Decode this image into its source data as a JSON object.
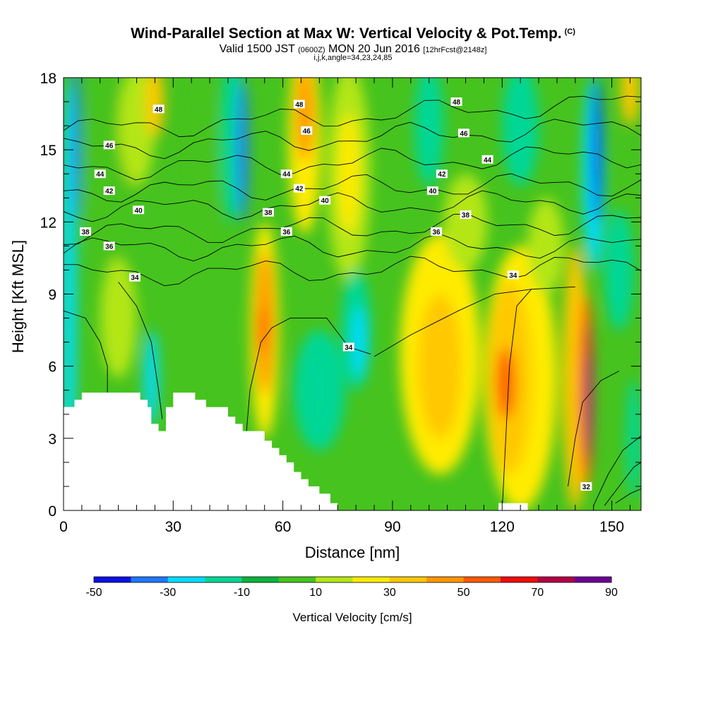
{
  "header": {
    "title": "Wind-Parallel Section at Max W: Vertical Velocity & Pot.Temp.",
    "copyright": "(C)",
    "subtitle_main": "Valid 1500 JST",
    "subtitle_z": "(0600Z)",
    "subtitle_date": "MON 20 Jun 2016",
    "subtitle_fcst": "[12hrFcst@2148z]",
    "subtitle2": "i,j,k,angle=34,23,24,85"
  },
  "chart_data": {
    "type": "heatmap",
    "xlabel": "Distance [nm]",
    "ylabel": "Height [Kft MSL]",
    "xlim": [
      0,
      158
    ],
    "ylim": [
      0,
      18
    ],
    "xticks": [
      "0",
      "30",
      "60",
      "90",
      "120",
      "150"
    ],
    "yticks": [
      "0",
      "3",
      "6",
      "9",
      "12",
      "15",
      "18"
    ],
    "colorbar": {
      "label": "Vertical Velocity [cm/s]",
      "levels": [
        -50,
        -40,
        -30,
        -20,
        -10,
        0,
        10,
        20,
        30,
        40,
        50,
        60,
        70,
        80,
        90
      ],
      "tick_labels": [
        "-50",
        "-30",
        "-10",
        "10",
        "30",
        "50",
        "70",
        "90"
      ],
      "colors": [
        "#0a10e6",
        "#1e78ff",
        "#00dcff",
        "#00d796",
        "#0ab43c",
        "#46c31e",
        "#b4e614",
        "#ffeb00",
        "#ffc800",
        "#ff9600",
        "#ff5a00",
        "#f00a0a",
        "#b40046",
        "#6e0096"
      ]
    },
    "background_w": 5,
    "velocity_cells": [
      {
        "x": 1.5,
        "y": 9,
        "w": 4,
        "h": 18,
        "v": -25
      },
      {
        "x": 3.5,
        "y": 15.5,
        "w": 2,
        "h": 7,
        "v": -40
      },
      {
        "x": 12,
        "y": 14,
        "w": 12,
        "h": 8,
        "v": 8
      },
      {
        "x": 20,
        "y": 16,
        "w": 10,
        "h": 5,
        "v": 18
      },
      {
        "x": 25,
        "y": 17,
        "w": 5,
        "h": 3,
        "v": 30
      },
      {
        "x": 15,
        "y": 8,
        "w": 10,
        "h": 5,
        "v": 14
      },
      {
        "x": 24,
        "y": 5.5,
        "w": 4,
        "h": 4,
        "v": -22
      },
      {
        "x": 38,
        "y": 14,
        "w": 8,
        "h": 8,
        "v": 8
      },
      {
        "x": 46,
        "y": 15.5,
        "w": 6,
        "h": 7,
        "v": -18
      },
      {
        "x": 49,
        "y": 15,
        "w": 3,
        "h": 6,
        "v": -32
      },
      {
        "x": 55,
        "y": 7.5,
        "w": 8,
        "h": 9,
        "v": 25
      },
      {
        "x": 55,
        "y": 7.8,
        "w": 5,
        "h": 6,
        "v": 45
      },
      {
        "x": 54.5,
        "y": 7.5,
        "w": 2.5,
        "h": 2,
        "v": 58
      },
      {
        "x": 66,
        "y": 15.5,
        "w": 9,
        "h": 8,
        "v": 25
      },
      {
        "x": 66,
        "y": 16.5,
        "w": 5,
        "h": 4,
        "v": 45
      },
      {
        "x": 78,
        "y": 14,
        "w": 12,
        "h": 9,
        "v": 15
      },
      {
        "x": 78,
        "y": 14,
        "w": 6,
        "h": 5,
        "v": 25
      },
      {
        "x": 80,
        "y": 7.5,
        "w": 8,
        "h": 5,
        "v": -12
      },
      {
        "x": 81,
        "y": 7,
        "w": 4,
        "h": 3,
        "v": -25
      },
      {
        "x": 70,
        "y": 5,
        "w": 14,
        "h": 5,
        "v": -12
      },
      {
        "x": 103,
        "y": 6.5,
        "w": 22,
        "h": 10,
        "v": 20
      },
      {
        "x": 103,
        "y": 6,
        "w": 12,
        "h": 6,
        "v": 32
      },
      {
        "x": 125,
        "y": 5.5,
        "w": 20,
        "h": 11,
        "v": 22
      },
      {
        "x": 122,
        "y": 5.5,
        "w": 12,
        "h": 8,
        "v": 38
      },
      {
        "x": 121,
        "y": 5.3,
        "w": 5,
        "h": 3,
        "v": 52
      },
      {
        "x": 140,
        "y": 5.5,
        "w": 7,
        "h": 11,
        "v": 30
      },
      {
        "x": 143,
        "y": 5,
        "w": 4,
        "h": 8,
        "v": 55
      },
      {
        "x": 143.5,
        "y": 4.8,
        "w": 2,
        "h": 6,
        "v": 75
      },
      {
        "x": 143.5,
        "y": 4.5,
        "w": 1.2,
        "h": 4,
        "v": 88
      },
      {
        "x": 145,
        "y": 14,
        "w": 6,
        "h": 8,
        "v": -28
      },
      {
        "x": 146,
        "y": 15,
        "w": 2.5,
        "h": 6,
        "v": -48
      },
      {
        "x": 152,
        "y": 10,
        "w": 8,
        "h": 5,
        "v": -15
      },
      {
        "x": 155,
        "y": 17.5,
        "w": 5,
        "h": 3,
        "v": 35
      },
      {
        "x": 156,
        "y": 3,
        "w": 4,
        "h": 5,
        "v": -15
      },
      {
        "x": 100,
        "y": 16,
        "w": 8,
        "h": 5,
        "v": -12
      },
      {
        "x": 125,
        "y": 16,
        "w": 10,
        "h": 5,
        "v": -12
      },
      {
        "x": 110,
        "y": 12,
        "w": 12,
        "h": 4,
        "v": 12
      },
      {
        "x": 132,
        "y": 11,
        "w": 10,
        "h": 4,
        "v": 14
      }
    ],
    "terrain": [
      [
        0,
        4.3
      ],
      [
        3,
        4.6
      ],
      [
        5,
        4.9
      ],
      [
        21,
        4.6
      ],
      [
        23,
        4.3
      ],
      [
        24,
        3.6
      ],
      [
        26,
        3.3
      ],
      [
        28,
        4.3
      ],
      [
        30,
        4.9
      ],
      [
        36,
        4.6
      ],
      [
        39,
        4.3
      ],
      [
        45,
        3.9
      ],
      [
        47,
        3.6
      ],
      [
        49,
        3.3
      ],
      [
        55,
        2.9
      ],
      [
        57,
        2.6
      ],
      [
        59,
        2.3
      ],
      [
        61,
        2.0
      ],
      [
        63,
        1.6
      ],
      [
        65,
        1.3
      ],
      [
        67,
        1.0
      ],
      [
        70,
        0.7
      ],
      [
        73,
        0.3
      ],
      [
        75,
        0.0
      ],
      [
        118,
        0.0
      ],
      [
        119,
        0.3
      ],
      [
        126,
        0.3
      ],
      [
        127,
        0.0
      ],
      [
        158,
        0.0
      ]
    ],
    "contours": [
      {
        "value": "48",
        "y_start": 15.8,
        "y_end": 17.0
      },
      {
        "value": "46",
        "y_start": 15.0,
        "y_end": 16.0
      },
      {
        "value": "44",
        "y_start": 14.2,
        "y_end": 14.8
      },
      {
        "value": "42",
        "y_start": 13.3,
        "y_end": 13.6
      },
      {
        "value": "40",
        "y_start": 12.5,
        "y_end": 12.9
      },
      {
        "value": "38",
        "y_start": 11.5,
        "y_end": 12.0
      },
      {
        "value": "36",
        "y_start": 10.9,
        "y_end": 11.0
      },
      {
        "value": "34",
        "y_start": 9.8,
        "y_end": 10.2
      }
    ],
    "contour_labels": [
      {
        "text": "48",
        "x": 26,
        "y": 16.7
      },
      {
        "text": "46",
        "x": 12.5,
        "y": 15.2
      },
      {
        "text": "44",
        "x": 10,
        "y": 14.0
      },
      {
        "text": "42",
        "x": 12.5,
        "y": 13.3
      },
      {
        "text": "40",
        "x": 20.5,
        "y": 12.5
      },
      {
        "text": "38",
        "x": 6,
        "y": 11.6
      },
      {
        "text": "36",
        "x": 12.5,
        "y": 11.0
      },
      {
        "text": "34",
        "x": 19.5,
        "y": 9.7
      },
      {
        "text": "48",
        "x": 64.5,
        "y": 16.9
      },
      {
        "text": "46",
        "x": 66.5,
        "y": 15.8
      },
      {
        "text": "44",
        "x": 61,
        "y": 14.0
      },
      {
        "text": "42",
        "x": 64.5,
        "y": 13.4
      },
      {
        "text": "40",
        "x": 71.5,
        "y": 12.9
      },
      {
        "text": "38",
        "x": 56,
        "y": 12.4
      },
      {
        "text": "36",
        "x": 61,
        "y": 11.6
      },
      {
        "text": "34",
        "x": 78,
        "y": 6.8
      },
      {
        "text": "48",
        "x": 107.5,
        "y": 17.0
      },
      {
        "text": "46",
        "x": 109.5,
        "y": 15.7
      },
      {
        "text": "44",
        "x": 116,
        "y": 14.6
      },
      {
        "text": "42",
        "x": 103.5,
        "y": 14.0
      },
      {
        "text": "40",
        "x": 101,
        "y": 13.3
      },
      {
        "text": "38",
        "x": 110,
        "y": 12.3
      },
      {
        "text": "36",
        "x": 102,
        "y": 11.6
      },
      {
        "text": "34",
        "x": 123,
        "y": 9.8
      },
      {
        "text": "32",
        "x": 143,
        "y": 1.0
      }
    ]
  }
}
